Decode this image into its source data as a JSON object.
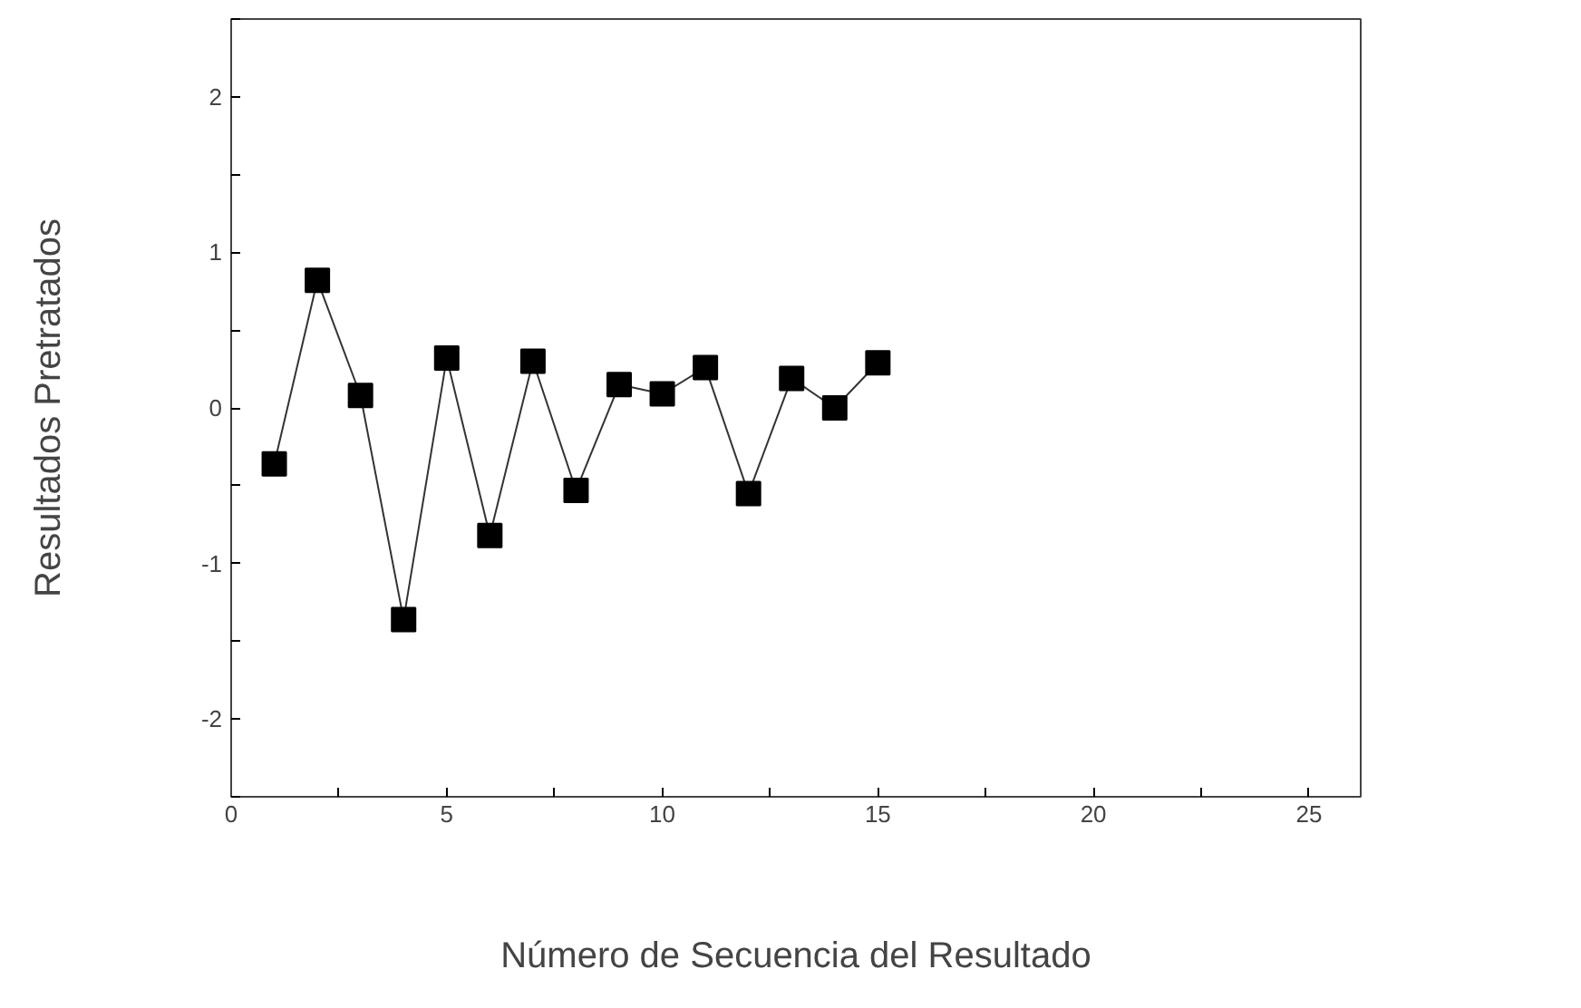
{
  "chart_data": {
    "type": "line",
    "xlabel": "Número de Secuencia del Resultado",
    "ylabel": "Resultados Pretratados",
    "x": [
      1,
      2,
      3,
      4,
      5,
      6,
      7,
      8,
      9,
      10,
      11,
      12,
      13,
      14,
      15
    ],
    "series": [
      {
        "color": "#000000",
        "values": [
          -0.36,
          0.82,
          0.08,
          -1.36,
          0.32,
          -0.82,
          0.3,
          -0.53,
          0.15,
          0.09,
          0.26,
          -0.55,
          0.19,
          0.0,
          0.29
        ]
      }
    ],
    "xlim": [
      0,
      26.2
    ],
    "ylim": [
      -2.5,
      2.5
    ],
    "xticks": [
      0,
      {
        "value": 2.5,
        "label": null
      },
      5,
      {
        "value": 7.5,
        "label": null
      },
      10,
      {
        "value": 12.5,
        "label": null
      },
      15,
      {
        "value": 17.5,
        "label": null
      },
      20,
      {
        "value": 22.5,
        "label": null
      },
      25
    ],
    "yticks": [
      {
        "value": -2.5,
        "label": null
      },
      -2,
      {
        "value": -1.5,
        "label": null
      },
      -1,
      {
        "value": -0.5,
        "label": null
      },
      0,
      {
        "value": 0.5,
        "label": null
      },
      1,
      {
        "value": 1.5,
        "label": null
      },
      2,
      {
        "value": 2.5,
        "label": null
      }
    ],
    "marker": "square",
    "line_style": "solid",
    "grid": false
  }
}
